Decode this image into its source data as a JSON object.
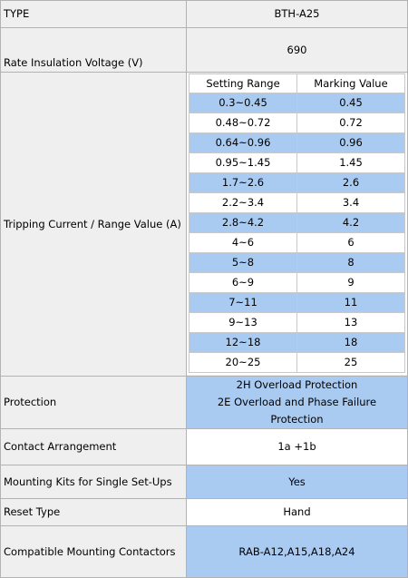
{
  "spec": {
    "type_label": "TYPE",
    "type_value": "BTH-A25",
    "voltage_label": "Rate Insulation Voltage (V)",
    "voltage_value": "690",
    "tripping_label": "Tripping Current / Range Value (A)",
    "range_headers": [
      "Setting Range",
      "Marking Value"
    ],
    "ranges": [
      {
        "setting": "0.3~0.45",
        "marking": "0.45"
      },
      {
        "setting": "0.48~0.72",
        "marking": "0.72"
      },
      {
        "setting": "0.64~0.96",
        "marking": "0.96"
      },
      {
        "setting": "0.95~1.45",
        "marking": "1.45"
      },
      {
        "setting": "1.7~2.6",
        "marking": "2.6"
      },
      {
        "setting": "2.2~3.4",
        "marking": "3.4"
      },
      {
        "setting": "2.8~4.2",
        "marking": "4.2"
      },
      {
        "setting": "4~6",
        "marking": "6"
      },
      {
        "setting": "5~8",
        "marking": "8"
      },
      {
        "setting": "6~9",
        "marking": "9"
      },
      {
        "setting": "7~11",
        "marking": "11"
      },
      {
        "setting": "9~13",
        "marking": "13"
      },
      {
        "setting": "12~18",
        "marking": "18"
      },
      {
        "setting": "20~25",
        "marking": "25"
      }
    ],
    "protection_label": "Protection",
    "protection_values": [
      "2H Overload Protection",
      "2E Overload and Phase Failure Protection"
    ],
    "contact_label": "Contact Arrangement",
    "contact_value": "1a +1b",
    "mounting_label": "Mounting Kits for Single Set-Ups",
    "mounting_value": "Yes",
    "reset_label": "Reset Type",
    "reset_value": "Hand",
    "contactors_label": "Compatible Mounting Contactors",
    "contactors_value": "RAB-A12,A15,A18,A24"
  },
  "colors": {
    "label_bg": "#efefef",
    "accent_blue": "#aacbf1",
    "border": "#b3b3b3"
  }
}
